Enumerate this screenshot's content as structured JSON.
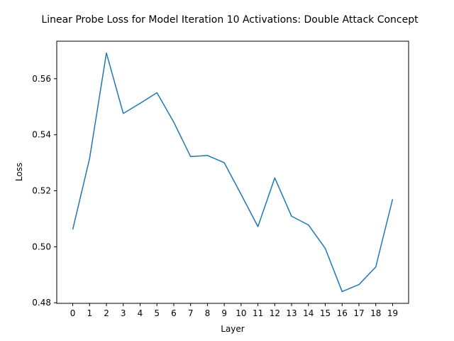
{
  "chart_data": {
    "type": "line",
    "title": "Linear Probe Loss for Model Iteration 10 Activations: Double Attack Concept",
    "xlabel": "Layer",
    "ylabel": "Loss",
    "x": [
      0,
      1,
      2,
      3,
      4,
      5,
      6,
      7,
      8,
      9,
      10,
      11,
      12,
      13,
      14,
      15,
      16,
      17,
      18,
      19
    ],
    "series": [
      {
        "values": [
          0.5062,
          0.5315,
          0.5692,
          0.5476,
          0.5512,
          0.555,
          0.5445,
          0.5322,
          0.5326,
          0.53,
          0.5187,
          0.5072,
          0.5246,
          0.5109,
          0.5078,
          0.4994,
          0.484,
          0.4865,
          0.4928,
          0.517
        ],
        "color": "#1f77b4"
      }
    ],
    "xticks": [
      "0",
      "1",
      "2",
      "3",
      "4",
      "5",
      "6",
      "7",
      "8",
      "9",
      "10",
      "11",
      "12",
      "13",
      "14",
      "15",
      "16",
      "17",
      "18",
      "19"
    ],
    "yticks": [
      0.48,
      0.5,
      0.52,
      0.54,
      0.56
    ],
    "ytick_labels": [
      "0.48",
      "0.50",
      "0.52",
      "0.54",
      "0.56"
    ],
    "xlim": [
      -0.95,
      19.95
    ],
    "ylim": [
      0.4798,
      0.5734
    ],
    "grid": false,
    "legend": "none"
  }
}
